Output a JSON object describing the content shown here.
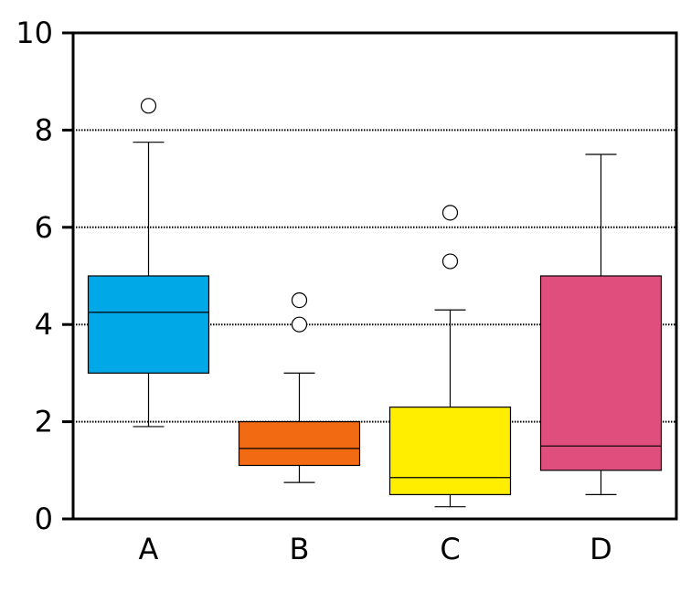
{
  "chart_data": {
    "type": "box",
    "title": "",
    "xlabel": "",
    "ylabel": "",
    "ylim": [
      0,
      10
    ],
    "yticks": [
      0,
      2,
      4,
      6,
      8,
      10
    ],
    "grid": "horizontal dotted at 2, 4, 6, 8",
    "legend": "none",
    "categories": [
      "A",
      "B",
      "C",
      "D"
    ],
    "boxes": [
      {
        "category": "A",
        "whisker_low": 1.9,
        "q1": 3.0,
        "median": 4.25,
        "q3": 5.0,
        "whisker_high": 7.75,
        "outliers": [
          8.5
        ],
        "color": "#00a8e8"
      },
      {
        "category": "B",
        "whisker_low": 0.75,
        "q1": 1.1,
        "median": 1.45,
        "q3": 2.0,
        "whisker_high": 3.0,
        "outliers": [
          4.0,
          4.5
        ],
        "color": "#f26b12"
      },
      {
        "category": "C",
        "whisker_low": 0.25,
        "q1": 0.5,
        "median": 0.85,
        "q3": 2.3,
        "whisker_high": 4.3,
        "outliers": [
          5.3,
          6.3
        ],
        "color": "#ffee00"
      },
      {
        "category": "D",
        "whisker_low": 0.5,
        "q1": 1.0,
        "median": 1.5,
        "q3": 5.0,
        "whisker_high": 7.5,
        "outliers": [],
        "color": "#e04e7e"
      }
    ]
  }
}
